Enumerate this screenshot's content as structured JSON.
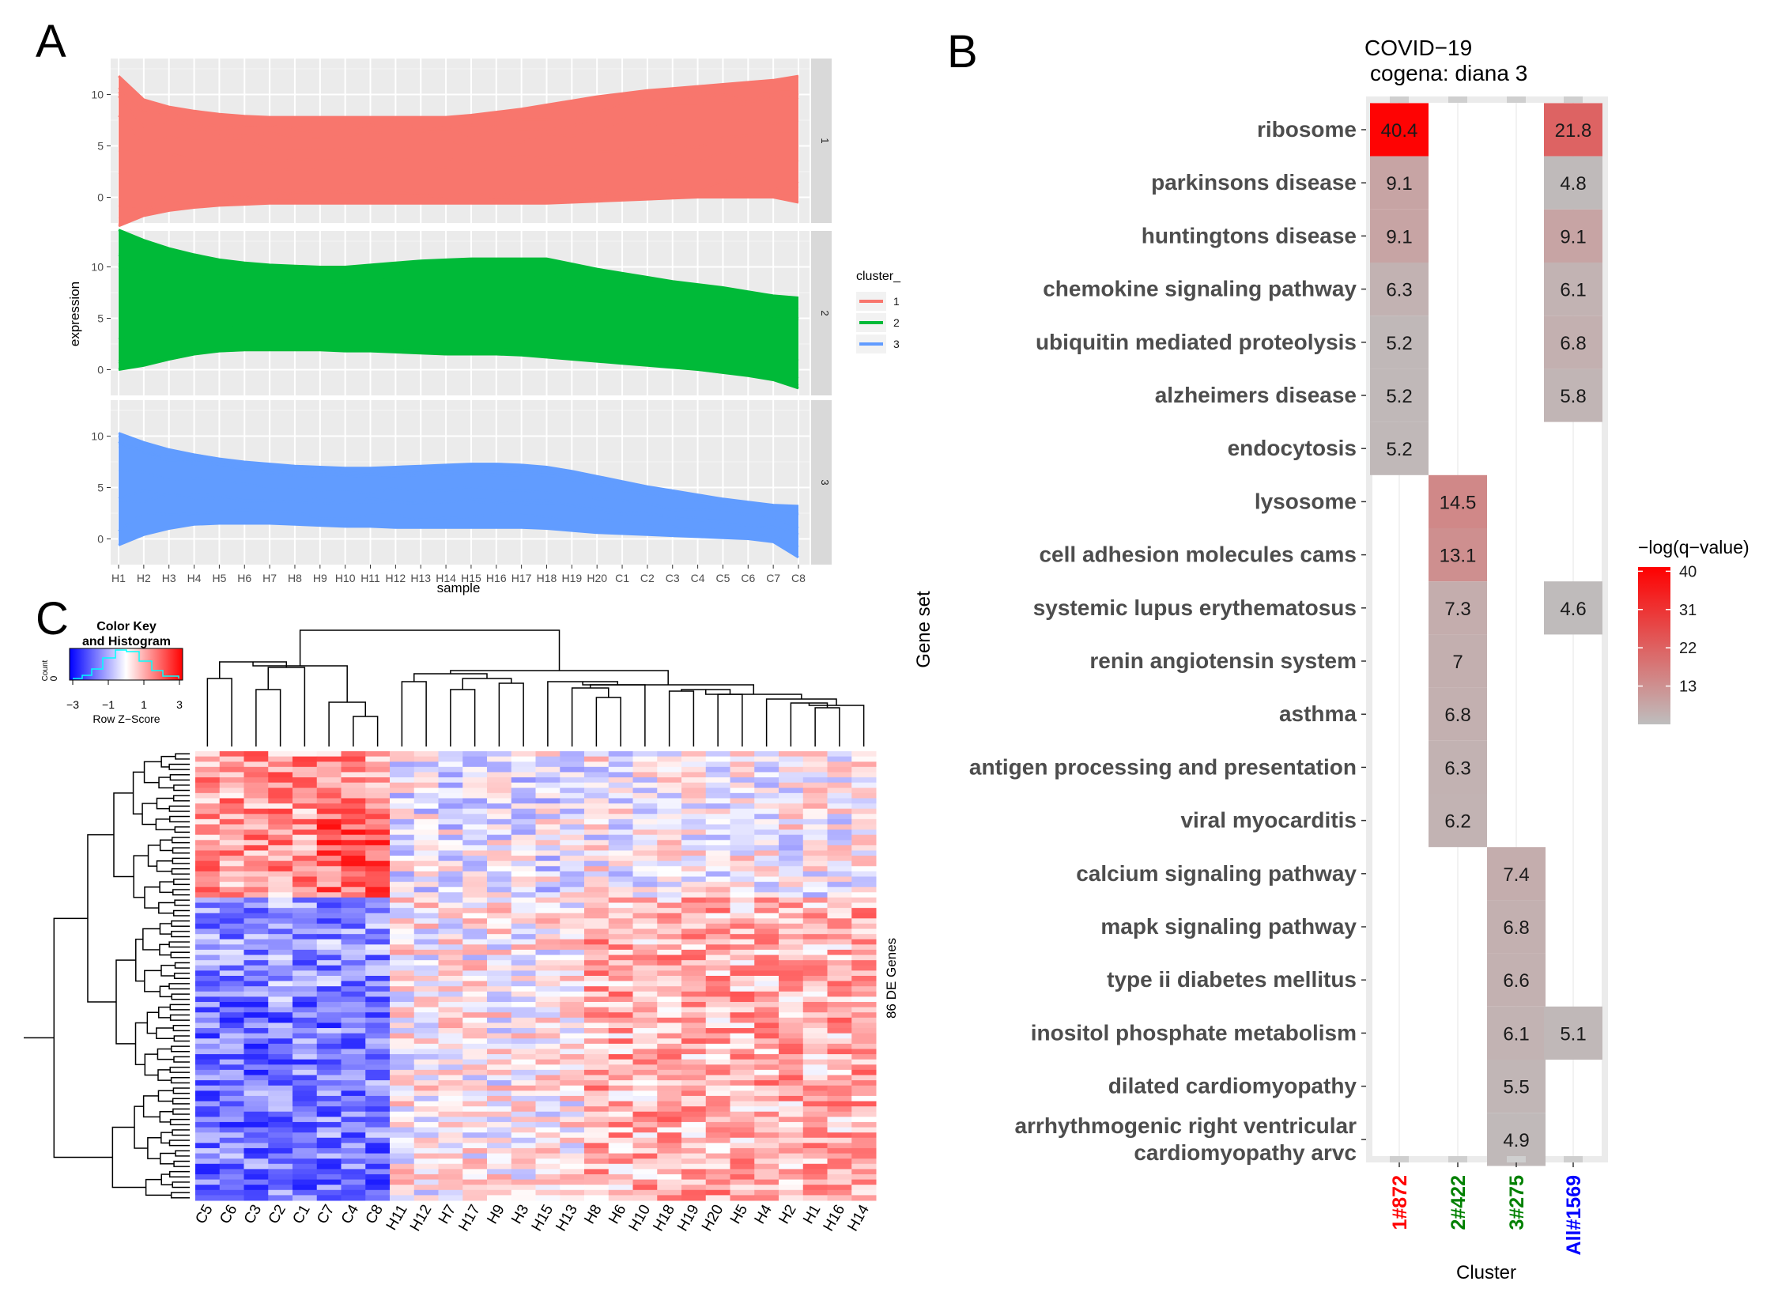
{
  "panel_labels": [
    "A",
    "B",
    "C"
  ],
  "chart_data": [
    {
      "panel": "A",
      "type": "line",
      "xlabel": "sample",
      "ylabel": "expression",
      "x": [
        "H1",
        "H2",
        "H3",
        "H4",
        "H5",
        "H6",
        "H7",
        "H8",
        "H9",
        "H10",
        "H11",
        "H12",
        "H13",
        "H14",
        "H15",
        "H16",
        "H17",
        "H18",
        "H19",
        "H20",
        "C1",
        "C2",
        "C3",
        "C4",
        "C5",
        "C6",
        "C7",
        "C8"
      ],
      "ylim": [
        -2.5,
        13.5
      ],
      "yticks": [
        0,
        5,
        10
      ],
      "grid": true,
      "legend": {
        "title": "cluster_",
        "placement": "right",
        "entries": [
          "1",
          "2",
          "3"
        ]
      },
      "facets": [
        {
          "strip": "1",
          "color": "#F8766D",
          "upper": [
            11.8,
            9.5,
            8.8,
            8.4,
            8.1,
            7.9,
            7.8,
            7.8,
            7.8,
            7.8,
            7.8,
            7.8,
            7.8,
            7.8,
            8.0,
            8.3,
            8.6,
            9.0,
            9.4,
            9.8,
            10.1,
            10.4,
            10.6,
            10.8,
            11.0,
            11.2,
            11.4,
            11.8
          ],
          "lower": [
            -2.8,
            -1.8,
            -1.3,
            -1.0,
            -0.8,
            -0.7,
            -0.6,
            -0.6,
            -0.6,
            -0.6,
            -0.6,
            -0.6,
            -0.6,
            -0.6,
            -0.6,
            -0.6,
            -0.6,
            -0.6,
            -0.5,
            -0.4,
            -0.3,
            -0.2,
            -0.1,
            0.0,
            0.0,
            0.0,
            0.0,
            -0.5
          ]
        },
        {
          "strip": "2",
          "color": "#00BA38",
          "upper": [
            13.6,
            12.6,
            11.8,
            11.2,
            10.7,
            10.4,
            10.2,
            10.1,
            10.0,
            10.0,
            10.2,
            10.4,
            10.6,
            10.7,
            10.8,
            10.8,
            10.8,
            10.8,
            10.3,
            9.8,
            9.4,
            9.0,
            8.6,
            8.3,
            8.0,
            7.6,
            7.2,
            7.0
          ],
          "lower": [
            0.0,
            0.4,
            1.0,
            1.5,
            1.8,
            1.9,
            1.9,
            1.9,
            1.9,
            1.8,
            1.8,
            1.7,
            1.6,
            1.5,
            1.5,
            1.5,
            1.4,
            1.2,
            1.0,
            0.8,
            0.6,
            0.4,
            0.2,
            0.0,
            -0.3,
            -0.6,
            -1.0,
            -1.8
          ]
        },
        {
          "strip": "3",
          "color": "#619CFF",
          "upper": [
            10.3,
            9.4,
            8.7,
            8.2,
            7.8,
            7.5,
            7.3,
            7.1,
            7.0,
            6.9,
            6.9,
            7.0,
            7.1,
            7.2,
            7.3,
            7.3,
            7.2,
            7.0,
            6.6,
            6.1,
            5.6,
            5.1,
            4.7,
            4.3,
            3.9,
            3.6,
            3.3,
            3.2
          ],
          "lower": [
            -0.6,
            0.4,
            1.0,
            1.4,
            1.5,
            1.5,
            1.5,
            1.4,
            1.3,
            1.2,
            1.2,
            1.1,
            1.1,
            1.1,
            1.1,
            1.1,
            1.1,
            1.0,
            0.8,
            0.6,
            0.5,
            0.4,
            0.3,
            0.2,
            0.1,
            0.0,
            -0.3,
            -1.8
          ]
        }
      ]
    },
    {
      "panel": "B",
      "type": "heatmap",
      "title": "COVID−19",
      "subtitle": "cogena: diana 3",
      "xlabel": "Cluster",
      "ylabel": "Gene set",
      "clusters": [
        {
          "label": "1#872",
          "color": "#FF0000"
        },
        {
          "label": "2#422",
          "color": "#008000"
        },
        {
          "label": "3#275",
          "color": "#008000"
        },
        {
          "label": "All#1569",
          "color": "#0000FF"
        }
      ],
      "rows": [
        {
          "name": "ribosome",
          "values": [
            40.4,
            null,
            null,
            21.8
          ]
        },
        {
          "name": "parkinsons disease",
          "values": [
            9.1,
            null,
            null,
            4.8
          ]
        },
        {
          "name": "huntingtons disease",
          "values": [
            9.1,
            null,
            null,
            9.1
          ]
        },
        {
          "name": "chemokine signaling pathway",
          "values": [
            6.3,
            null,
            null,
            6.1
          ]
        },
        {
          "name": "ubiquitin mediated proteolysis",
          "values": [
            5.2,
            null,
            null,
            6.8
          ]
        },
        {
          "name": "alzheimers disease",
          "values": [
            5.2,
            null,
            null,
            5.8
          ]
        },
        {
          "name": "endocytosis",
          "values": [
            5.2,
            null,
            null,
            null
          ]
        },
        {
          "name": "lysosome",
          "values": [
            null,
            14.5,
            null,
            null
          ]
        },
        {
          "name": "cell adhesion molecules cams",
          "values": [
            null,
            13.1,
            null,
            null
          ]
        },
        {
          "name": "systemic lupus erythematosus",
          "values": [
            null,
            7.3,
            null,
            4.6
          ]
        },
        {
          "name": "renin angiotensin system",
          "values": [
            null,
            7,
            null,
            null
          ]
        },
        {
          "name": "asthma",
          "values": [
            null,
            6.8,
            null,
            null
          ]
        },
        {
          "name": "antigen processing and presentation",
          "values": [
            null,
            6.3,
            null,
            null
          ]
        },
        {
          "name": "viral myocarditis",
          "values": [
            null,
            6.2,
            null,
            null
          ]
        },
        {
          "name": "calcium signaling pathway",
          "values": [
            null,
            null,
            7.4,
            null
          ]
        },
        {
          "name": "mapk signaling pathway",
          "values": [
            null,
            null,
            6.8,
            null
          ]
        },
        {
          "name": "type ii diabetes mellitus",
          "values": [
            null,
            null,
            6.6,
            null
          ]
        },
        {
          "name": "inositol phosphate metabolism",
          "values": [
            null,
            null,
            6.1,
            5.1
          ]
        },
        {
          "name": "dilated cardiomyopathy",
          "values": [
            null,
            null,
            5.5,
            null
          ]
        },
        {
          "name": [
            "arrhythmogenic right ventricular",
            "cardiomyopathy arvc"
          ],
          "values": [
            null,
            null,
            4.9,
            null
          ]
        }
      ],
      "legend": {
        "title": "−log(q−value)",
        "placement": "right",
        "ticks": [
          40,
          31,
          22,
          13
        ],
        "range": [
          4,
          41
        ]
      },
      "colors": {
        "low": "#BEBEBE",
        "high": "#FF0000"
      }
    },
    {
      "panel": "C",
      "type": "heatmap",
      "row_label": "86 DE Genes",
      "n_genes": 86,
      "columns": [
        "C5",
        "C6",
        "C3",
        "C2",
        "C1",
        "C7",
        "C4",
        "C8",
        "H11",
        "H12",
        "H7",
        "H17",
        "H9",
        "H3",
        "H15",
        "H13",
        "H8",
        "H6",
        "H10",
        "H18",
        "H19",
        "H20",
        "H5",
        "H4",
        "H2",
        "H1",
        "H16",
        "H14"
      ],
      "color_key": {
        "title_lines": [
          "Color Key",
          "and Histogram"
        ],
        "axis_label": "Row Z−Score",
        "ticks": [
          "−3",
          "−1",
          "1",
          "3"
        ],
        "count_label": "Count",
        "count_tick": "0"
      },
      "colors": {
        "low": "#0000FF",
        "mid": "#FFFFFF",
        "high": "#FF0000"
      }
    }
  ]
}
